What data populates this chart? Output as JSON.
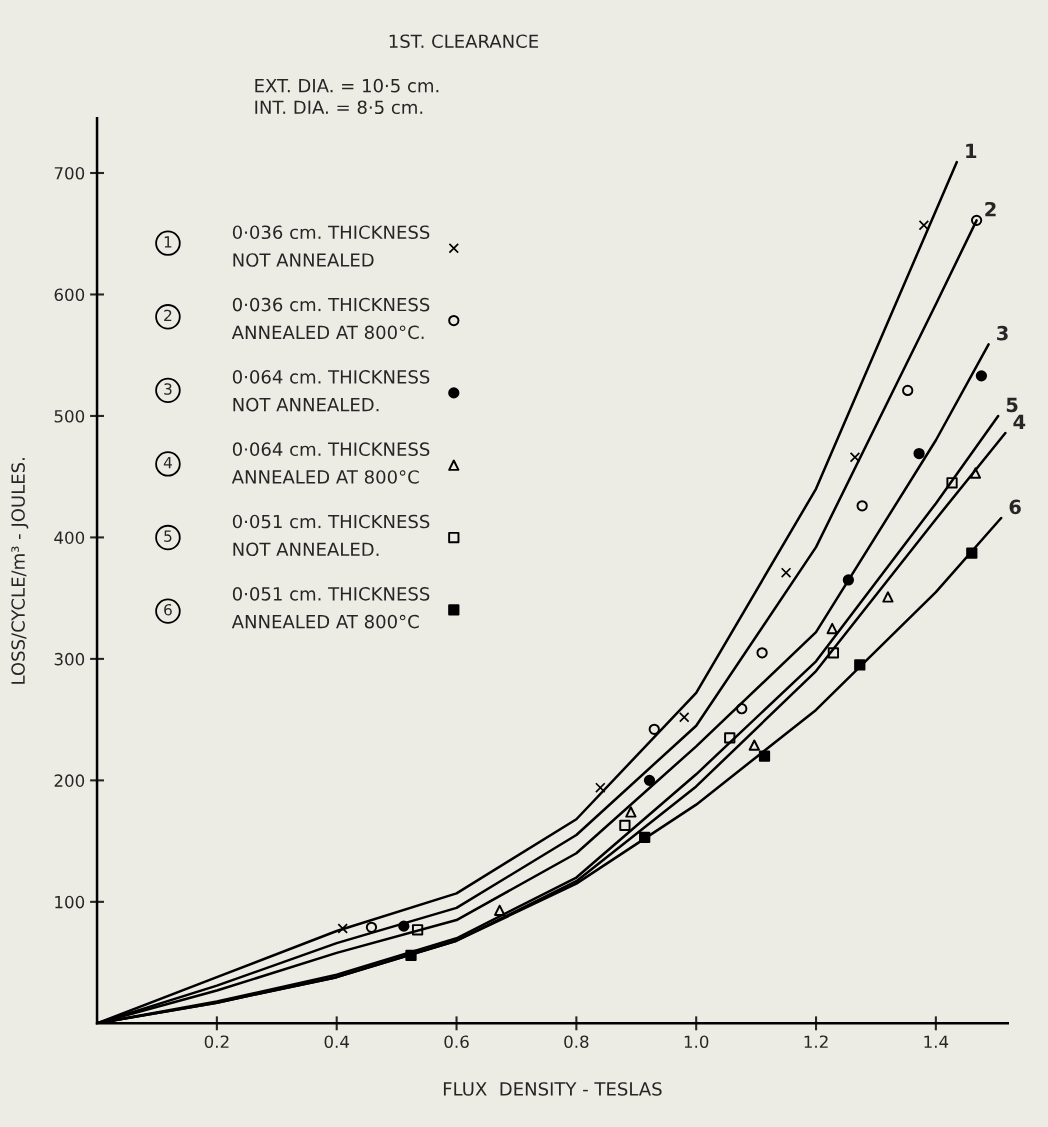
{
  "chart_data": {
    "type": "line",
    "title": "1ST. CLEARANCE",
    "subtitle": "EXT. DIA. = 10·5 cm.\nINT. DIA. = 8·5 cm.",
    "xlabel": "FLUX  DENSITY - TESLAS",
    "ylabel": "LOSS/CYCLE/m³ - JOULES.",
    "xlim": [
      0,
      1.52
    ],
    "ylim": [
      0,
      745
    ],
    "xticks": [
      0.2,
      0.4,
      0.6,
      0.8,
      {
        "value": 1,
        "label": "1.0"
      },
      1.2,
      1.4
    ],
    "yticks": [
      100,
      200,
      300,
      400,
      500,
      600,
      700
    ],
    "grid": false,
    "legend": "top left",
    "series": [
      {
        "name": "1",
        "color": "#000000",
        "marker": "none",
        "x": [
          0,
          0.2,
          0.4,
          0.6,
          0.8,
          1.0,
          1.2,
          1.4,
          1.435
        ],
        "values": [
          0,
          38,
          76,
          107,
          168,
          272,
          440,
          669,
          709
        ]
      },
      {
        "name": "2",
        "color": "#000000",
        "marker": "none",
        "x": [
          0,
          0.2,
          0.4,
          0.6,
          0.8,
          1.0,
          1.2,
          1.4,
          1.468
        ],
        "values": [
          0,
          31,
          66,
          95,
          155,
          245,
          392,
          592,
          661
        ]
      },
      {
        "name": "3",
        "color": "#000000",
        "marker": "none",
        "x": [
          0,
          0.2,
          0.4,
          0.6,
          0.8,
          1.0,
          1.2,
          1.4,
          1.488
        ],
        "values": [
          0,
          27,
          58,
          85,
          140,
          228,
          322,
          480,
          559
        ]
      },
      {
        "name": "4",
        "color": "#000000",
        "marker": "none",
        "x": [
          0,
          0.2,
          0.4,
          0.6,
          0.8,
          1.0,
          1.2,
          1.4,
          1.516
        ],
        "values": [
          0,
          17,
          38,
          68,
          117,
          195,
          290,
          415,
          486
        ]
      },
      {
        "name": "5",
        "color": "#000000",
        "marker": "none",
        "x": [
          0,
          0.2,
          0.4,
          0.6,
          0.8,
          1.0,
          1.2,
          1.4,
          1.504
        ],
        "values": [
          0,
          18,
          40,
          70,
          120,
          205,
          298,
          428,
          500
        ]
      },
      {
        "name": "6",
        "color": "#000000",
        "marker": "none",
        "x": [
          0,
          0.2,
          0.4,
          0.6,
          0.8,
          1.0,
          1.2,
          1.4,
          1.509
        ],
        "values": [
          0,
          17,
          38,
          68,
          115,
          180,
          258,
          355,
          416
        ]
      },
      {
        "type": "scatter",
        "name": "0·036 cm. THICKNESS\nNOT ANNEALED",
        "color": "#000000",
        "marker": "cross",
        "x": [
          0.41,
          0.84,
          0.98,
          1.15,
          1.265,
          1.38
        ],
        "values": [
          78,
          194,
          252,
          371,
          466,
          657
        ]
      },
      {
        "type": "scatter",
        "name": "0·036 cm. THICKNESS\nANNEALED AT 800°C.",
        "color": "#000000",
        "marker": "circle",
        "x": [
          0.458,
          0.93,
          1.076,
          1.11,
          1.277,
          1.353,
          1.468
        ],
        "values": [
          79,
          242,
          259,
          305,
          426,
          521,
          661
        ]
      },
      {
        "type": "scatter",
        "name": "0·064 cm. THICKNESS\nNOT ANNEALED.",
        "color": "#000000",
        "marker": "circle",
        "x": [
          0.512,
          0.922,
          1.254,
          1.372,
          1.476
        ],
        "values": [
          80,
          200,
          365,
          469,
          533
        ]
      },
      {
        "type": "scatter",
        "name": "0·064 cm. THICKNESS\nANNEALED AT 800°C",
        "color": "#000000",
        "marker": "triangle",
        "x": [
          0.672,
          0.891,
          1.097,
          1.227,
          1.32,
          1.466
        ],
        "values": [
          93,
          174,
          229,
          325,
          351,
          453
        ]
      },
      {
        "type": "scatter",
        "name": "0·051 cm. THICKNESS\nNOT ANNEALED.",
        "color": "#000000",
        "marker": "square",
        "x": [
          0.535,
          0.881,
          1.056,
          1.229,
          1.427
        ],
        "values": [
          77,
          163,
          235,
          305,
          445
        ]
      },
      {
        "type": "scatter",
        "name": "0·051 cm. THICKNESS\nANNEALED AT 800°C",
        "color": "#000000",
        "marker": "square",
        "x": [
          0.524,
          0.914,
          1.114,
          1.273,
          1.46
        ],
        "values": [
          56,
          153,
          220,
          295,
          387
        ]
      }
    ]
  }
}
